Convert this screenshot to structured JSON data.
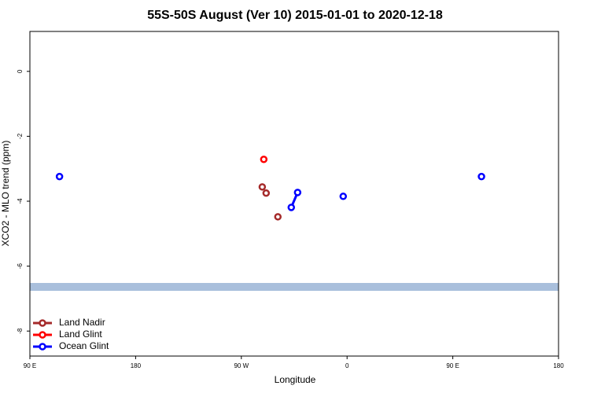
{
  "chart_data": {
    "type": "line",
    "title": "55S-50S August (Ver 10)   2015-01-01 to 2020-12-18",
    "x_label": "Longitude",
    "y_label": "XCO2 - MLO trend (ppm)",
    "xlim": [
      -270,
      180
    ],
    "xticks": [
      {
        "value": -270,
        "label": "90 E"
      },
      {
        "value": -180,
        "label": "180"
      },
      {
        "value": -90,
        "label": "90 W"
      },
      0,
      {
        "value": 90,
        "label": "90 E"
      },
      180
    ],
    "ylim": [
      -8.77,
      1.23
    ],
    "yticks": [
      0,
      -2,
      -4,
      -6,
      -8
    ],
    "legend": "bottom-left",
    "series": [
      {
        "name": "Land Nadir",
        "color": "#a52a2a",
        "x": [
          -72.2,
          null,
          -68.9,
          null,
          -58.9
        ],
        "values": [
          -3.56,
          null,
          -3.75,
          null,
          -4.48
        ]
      },
      {
        "name": "Land Glint",
        "color": "#ff0000",
        "x": [
          -70.9
        ],
        "values": [
          -2.71
        ]
      },
      {
        "name": "Ocean Glint",
        "color": "#0000ff",
        "x": [
          -244.8,
          null,
          -47.5,
          -42.1,
          null,
          -3.3,
          null,
          114.4
        ],
        "values": [
          -3.24,
          null,
          -4.19,
          -3.73,
          null,
          -3.85,
          null,
          -3.24
        ]
      }
    ]
  }
}
